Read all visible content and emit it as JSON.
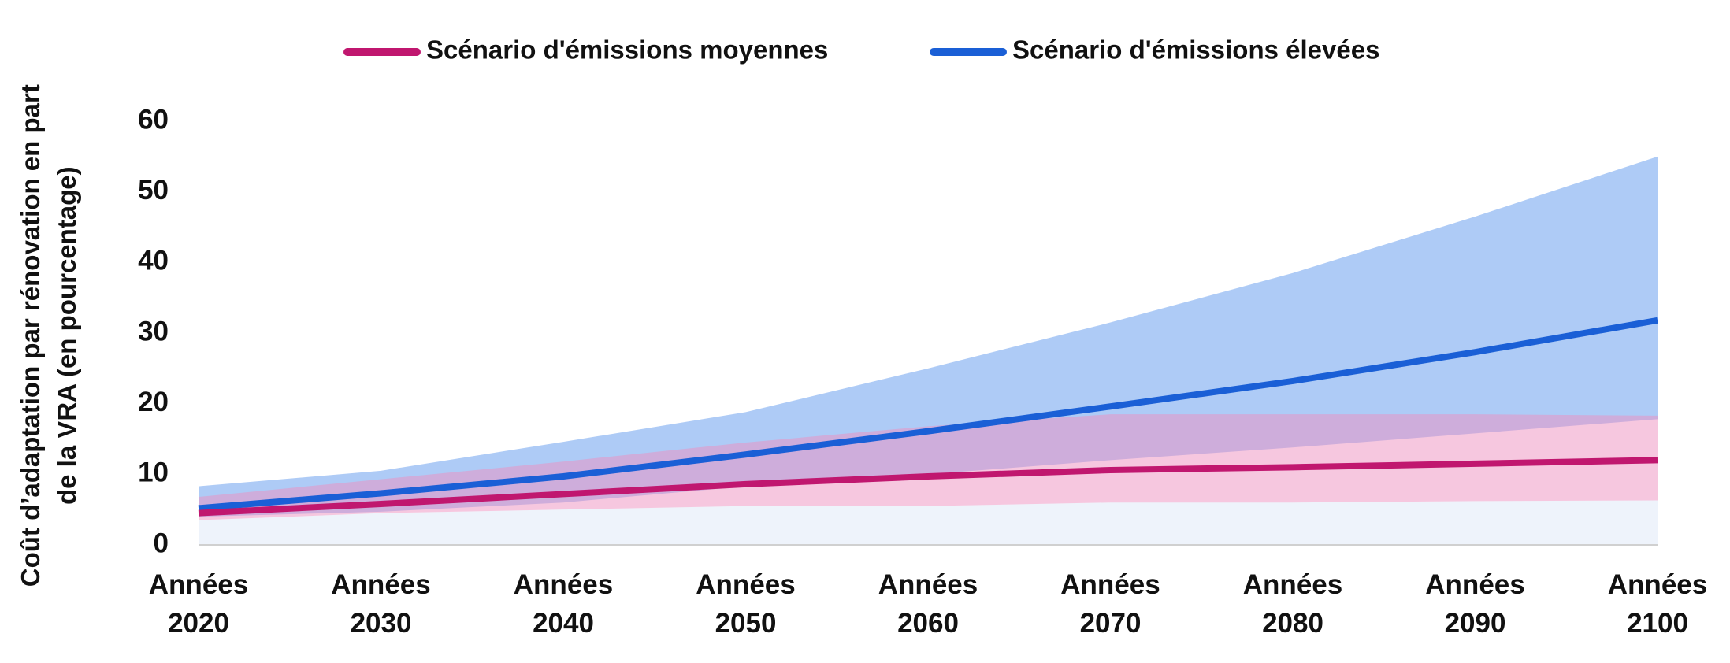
{
  "chart_data": {
    "type": "line-band",
    "y_label": "Coût d’adaptation par rénovation en part de la VRA (en pourcentage)",
    "categories": [
      "Années 2020",
      "Années 2030",
      "Années 2040",
      "Années 2050",
      "Années 2060",
      "Années 2070",
      "Années 2080",
      "Années 2090",
      "Années 2100"
    ],
    "series": [
      {
        "name": "Scénario d'émissions moyennes",
        "color": "#c0176f",
        "band_color": "#ee8fc0",
        "values": [
          4.5,
          5.8,
          7.2,
          8.6,
          9.7,
          10.6,
          11.0,
          11.5,
          12.0
        ],
        "range_low": [
          3.5,
          4.5,
          5.0,
          5.5,
          5.5,
          6.0,
          6.0,
          6.2,
          6.3
        ],
        "range_high": [
          6.8,
          9.3,
          11.8,
          14.5,
          16.8,
          18.5,
          18.5,
          18.5,
          18.3
        ]
      },
      {
        "name": "Scénario d'émissions élevées",
        "color": "#1a5fd6",
        "band_color": "#aecbf6",
        "values": [
          5.2,
          7.3,
          9.7,
          12.8,
          16.1,
          19.6,
          23.2,
          27.3,
          31.8
        ],
        "range_low": [
          4.0,
          4.7,
          6.0,
          8.3,
          10.0,
          12.0,
          13.8,
          15.8,
          17.8
        ],
        "range_high": [
          8.3,
          10.5,
          14.6,
          18.8,
          25.0,
          31.5,
          38.5,
          46.5,
          55.0
        ]
      }
    ],
    "ylim": [
      0,
      60
    ],
    "yticks": [
      0,
      10,
      20,
      30,
      40,
      50,
      60
    ],
    "grid": false,
    "legend": "top"
  }
}
